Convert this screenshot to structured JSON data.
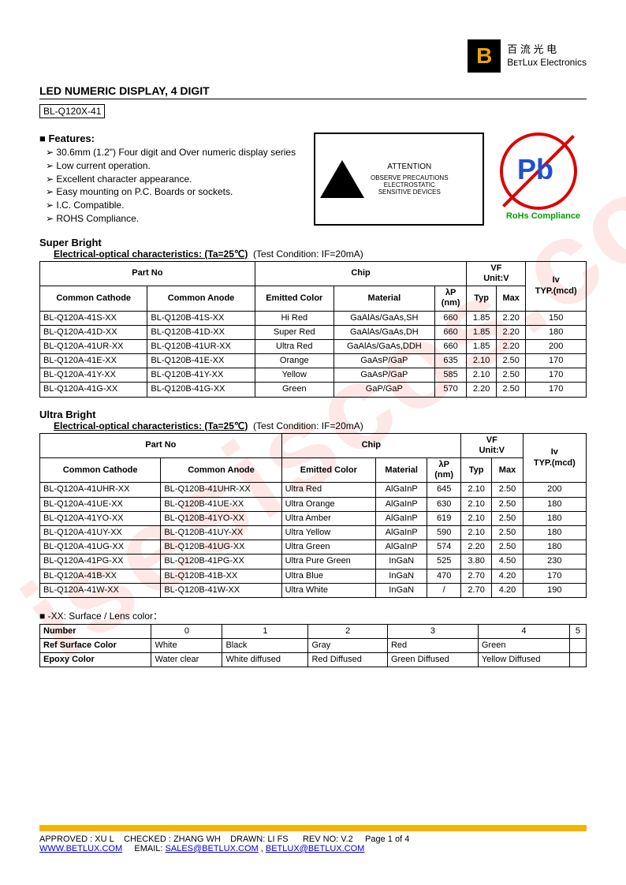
{
  "logo": {
    "letter": "B",
    "cn": "百 流 光 电",
    "en": "BᴇᴛLux Electronics"
  },
  "title": "LED NUMERIC DISPLAY, 4 DIGIT",
  "part": "BL-Q120X-41",
  "features_label": "Features:",
  "features": [
    "30.6mm (1.2\") Four digit and Over numeric display series",
    "Low current operation.",
    "Excellent character appearance.",
    "Easy mounting on P.C. Boards or sockets.",
    "I.C. Compatible.",
    "ROHS Compliance."
  ],
  "esd": {
    "attention": "ATTENTION",
    "line1": "OBSERVE PRECAUTIONS",
    "line2": "ELECTROSTATIC",
    "line3": "SENSITIVE DEVICES"
  },
  "rohs": {
    "pb": "Pb",
    "label": "RoHs Compliance"
  },
  "super_bright": {
    "title": "Super Bright",
    "sub_u": "Electrical-optical characteristics: (Ta=25℃)",
    "sub_cond": "(Test Condition: IF=20mA)",
    "headers": {
      "partno": "Part No",
      "chip": "Chip",
      "vf": "VF",
      "vf_unit": "Unit:V",
      "iv": "Iv",
      "iv_unit": "TYP.(mcd)",
      "cc": "Common Cathode",
      "ca": "Common Anode",
      "emit": "Emitted Color",
      "mat": "Material",
      "lp": "λP",
      "nm": "(nm)",
      "typ": "Typ",
      "max": "Max"
    },
    "rows": [
      {
        "cc": "BL-Q120A-41S-XX",
        "ca": "BL-Q120B-41S-XX",
        "color": "Hi Red",
        "mat": "GaAlAs/GaAs,SH",
        "lp": "660",
        "typ": "1.85",
        "max": "2.20",
        "iv": "150"
      },
      {
        "cc": "BL-Q120A-41D-XX",
        "ca": "BL-Q120B-41D-XX",
        "color": "Super Red",
        "mat": "GaAlAs/GaAs,DH",
        "lp": "660",
        "typ": "1.85",
        "max": "2.20",
        "iv": "180"
      },
      {
        "cc": "BL-Q120A-41UR-XX",
        "ca": "BL-Q120B-41UR-XX",
        "color": "Ultra Red",
        "mat": "GaAlAs/GaAs,DDH",
        "lp": "660",
        "typ": "1.85",
        "max": "2.20",
        "iv": "200"
      },
      {
        "cc": "BL-Q120A-41E-XX",
        "ca": "BL-Q120B-41E-XX",
        "color": "Orange",
        "mat": "GaAsP/GaP",
        "lp": "635",
        "typ": "2.10",
        "max": "2.50",
        "iv": "170"
      },
      {
        "cc": "BL-Q120A-41Y-XX",
        "ca": "BL-Q120B-41Y-XX",
        "color": "Yellow",
        "mat": "GaAsP/GaP",
        "lp": "585",
        "typ": "2.10",
        "max": "2.50",
        "iv": "170"
      },
      {
        "cc": "BL-Q120A-41G-XX",
        "ca": "BL-Q120B-41G-XX",
        "color": "Green",
        "mat": "GaP/GaP",
        "lp": "570",
        "typ": "2.20",
        "max": "2.50",
        "iv": "170"
      }
    ]
  },
  "ultra_bright": {
    "title": "Ultra Bright",
    "sub_u": "Electrical-optical characteristics: (Ta=25℃)",
    "sub_cond": "(Test Condition: IF=20mA)",
    "headers": {
      "partno": "Part No",
      "chip": "Chip",
      "vf": "VF",
      "vf_unit": "Unit:V",
      "iv": "Iv",
      "iv_unit": "TYP.(mcd)",
      "cc": "Common Cathode",
      "ca": "Common Anode",
      "emit": "Emitted Color",
      "mat": "Material",
      "lp": "λP",
      "nm": "(nm)",
      "typ": "Typ",
      "max": "Max"
    },
    "rows": [
      {
        "cc": "BL-Q120A-41UHR-XX",
        "ca": "BL-Q120B-41UHR-XX",
        "color": "Ultra Red",
        "mat": "AlGaInP",
        "lp": "645",
        "typ": "2.10",
        "max": "2.50",
        "iv": "200"
      },
      {
        "cc": "BL-Q120A-41UE-XX",
        "ca": "BL-Q120B-41UE-XX",
        "color": "Ultra Orange",
        "mat": "AlGaInP",
        "lp": "630",
        "typ": "2.10",
        "max": "2.50",
        "iv": "180"
      },
      {
        "cc": "BL-Q120A-41YO-XX",
        "ca": "BL-Q120B-41YO-XX",
        "color": "Ultra Amber",
        "mat": "AlGaInP",
        "lp": "619",
        "typ": "2.10",
        "max": "2.50",
        "iv": "180"
      },
      {
        "cc": "BL-Q120A-41UY-XX",
        "ca": "BL-Q120B-41UY-XX",
        "color": "Ultra Yellow",
        "mat": "AlGaInP",
        "lp": "590",
        "typ": "2.10",
        "max": "2.50",
        "iv": "180"
      },
      {
        "cc": "BL-Q120A-41UG-XX",
        "ca": "BL-Q120B-41UG-XX",
        "color": "Ultra Green",
        "mat": "AlGaInP",
        "lp": "574",
        "typ": "2.20",
        "max": "2.50",
        "iv": "180"
      },
      {
        "cc": "BL-Q120A-41PG-XX",
        "ca": "BL-Q120B-41PG-XX",
        "color": "Ultra Pure Green",
        "mat": "InGaN",
        "lp": "525",
        "typ": "3.80",
        "max": "4.50",
        "iv": "230"
      },
      {
        "cc": "BL-Q120A-41B-XX",
        "ca": "BL-Q120B-41B-XX",
        "color": "Ultra Blue",
        "mat": "InGaN",
        "lp": "470",
        "typ": "2.70",
        "max": "4.20",
        "iv": "170"
      },
      {
        "cc": "BL-Q120A-41W-XX",
        "ca": "BL-Q120B-41W-XX",
        "color": "Ultra White",
        "mat": "InGaN",
        "lp": "/",
        "typ": "2.70",
        "max": "4.20",
        "iv": "190"
      }
    ]
  },
  "lens": {
    "note": "-XX: Surface / Lens color：",
    "headers": [
      "0",
      "1",
      "2",
      "3",
      "4",
      "5"
    ],
    "row_labels": [
      "Number",
      "Ref Surface Color",
      "Epoxy Color"
    ],
    "surface": [
      "White",
      "Black",
      "Gray",
      "Red",
      "Green",
      ""
    ],
    "epoxy": [
      "Water clear",
      "White diffused",
      "Red Diffused",
      "Green Diffused",
      "Yellow Diffused",
      ""
    ]
  },
  "footer": {
    "line1_a": "APPROVED : XU L",
    "line1_b": "CHECKED  : ZHANG WH",
    "line1_c": "DRAWN:  LI  FS",
    "line1_d": "REV  NO:  V.2",
    "line1_e": "Page 1 of 4",
    "url": "WWW.BETLUX.COM",
    "email_label": "EMAIL:",
    "email1": "SALES@BETLUX.COM",
    "email2": "BETLUX@BETLUX.COM"
  }
}
